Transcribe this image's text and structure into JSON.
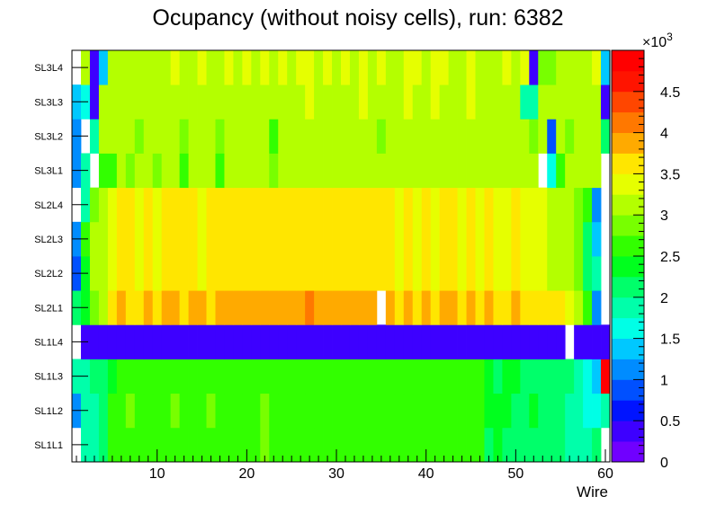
{
  "chart_data": {
    "type": "heatmap",
    "title": "Ocupancy (without noisy cells), run: 6382",
    "xlabel": "Wire",
    "ylabel": "",
    "xlim": [
      0.5,
      60.5
    ],
    "x_ticks": [
      10,
      20,
      30,
      40,
      50,
      60
    ],
    "y_categories": [
      "SL1L1",
      "SL1L2",
      "SL1L3",
      "SL1L4",
      "SL2L1",
      "SL2L2",
      "SL2L3",
      "SL2L4",
      "SL3L1",
      "SL3L2",
      "SL3L3",
      "SL3L4"
    ],
    "z_range": [
      0,
      5000
    ],
    "z_multiplier_label": "×10",
    "z_multiplier_exponent": "3",
    "colorbar_ticks": [
      "0",
      "0.5",
      "1",
      "1.5",
      "2",
      "2.5",
      "3",
      "3.5",
      "4",
      "4.5"
    ],
    "rows": {
      "SL1L1": [
        0,
        1800,
        1900,
        2100,
        2500,
        2600,
        2700,
        2700,
        2600,
        2600,
        2700,
        2600,
        2600,
        2600,
        2700,
        2700,
        2600,
        2700,
        2700,
        2600,
        2600,
        2800,
        2600,
        2700,
        2600,
        2700,
        2700,
        2600,
        2600,
        2600,
        2700,
        2600,
        2700,
        2600,
        2700,
        2600,
        2700,
        2600,
        2700,
        2600,
        2700,
        2600,
        2700,
        2600,
        2600,
        2700,
        2200,
        2300,
        2200,
        2200,
        2100,
        2200,
        2100,
        2200,
        2200,
        1900,
        1800,
        1800,
        2000,
        0
      ],
      "SL1L2": [
        1200,
        1800,
        1900,
        2100,
        2500,
        2700,
        2800,
        2700,
        2600,
        2600,
        2700,
        2800,
        2600,
        2600,
        2700,
        2800,
        2600,
        2700,
        2700,
        2600,
        2600,
        2800,
        2600,
        2700,
        2600,
        2700,
        2700,
        2600,
        2600,
        2600,
        2700,
        2600,
        2700,
        2600,
        2700,
        2600,
        2700,
        2600,
        2700,
        2600,
        2700,
        2600,
        2700,
        2600,
        2600,
        2700,
        2300,
        2400,
        2300,
        2200,
        2200,
        2300,
        2100,
        2200,
        2200,
        1900,
        1800,
        1700,
        1500,
        1800
      ],
      "SL1L3": [
        1800,
        1900,
        2000,
        2100,
        2300,
        2600,
        2700,
        2600,
        2600,
        2500,
        2600,
        2600,
        2600,
        2500,
        2600,
        2700,
        2500,
        2600,
        2600,
        2500,
        2500,
        2700,
        2500,
        2600,
        2500,
        2600,
        2600,
        2500,
        2500,
        2500,
        2600,
        2500,
        2600,
        2500,
        2600,
        2500,
        2600,
        2500,
        2600,
        2500,
        2600,
        2500,
        2600,
        2500,
        2500,
        2600,
        2400,
        2200,
        2300,
        2300,
        2200,
        2100,
        2200,
        2200,
        2100,
        2000,
        1900,
        1500,
        1300,
        4900
      ],
      "SL1L4": [
        0,
        400,
        400,
        400,
        400,
        400,
        400,
        400,
        400,
        400,
        400,
        400,
        400,
        400,
        400,
        400,
        400,
        400,
        400,
        400,
        400,
        400,
        400,
        400,
        400,
        400,
        400,
        400,
        400,
        400,
        400,
        400,
        400,
        400,
        400,
        400,
        400,
        400,
        400,
        400,
        400,
        400,
        400,
        400,
        400,
        400,
        400,
        400,
        400,
        400,
        400,
        400,
        400,
        400,
        400,
        0,
        400,
        400,
        400,
        400
      ],
      "SL2L1": [
        2200,
        2400,
        2900,
        3100,
        3700,
        3800,
        3700,
        3700,
        3800,
        3700,
        3800,
        3800,
        3700,
        3800,
        3800,
        3700,
        3900,
        3800,
        3900,
        3800,
        3900,
        3900,
        3800,
        3900,
        3800,
        3900,
        4200,
        3800,
        3900,
        3800,
        3900,
        3800,
        3900,
        3800,
        0,
        3800,
        3700,
        3800,
        3700,
        3800,
        3700,
        3800,
        3800,
        3700,
        3800,
        3700,
        3800,
        3700,
        3700,
        3800,
        3600,
        3700,
        3600,
        3700,
        3500,
        3300,
        3100,
        2700,
        1000,
        0
      ],
      "SL2L2": [
        800,
        2400,
        3000,
        3200,
        3400,
        3500,
        3500,
        3400,
        3500,
        3400,
        3500,
        3600,
        3500,
        3500,
        3400,
        3500,
        3600,
        3500,
        3600,
        3500,
        3600,
        3600,
        3500,
        3600,
        3500,
        3600,
        3600,
        3500,
        3600,
        3500,
        3600,
        3500,
        3600,
        3500,
        3600,
        3500,
        3400,
        3500,
        3400,
        3500,
        3400,
        3500,
        3500,
        3400,
        3500,
        3400,
        3500,
        3400,
        3400,
        3500,
        3300,
        3400,
        3300,
        3200,
        3100,
        3000,
        2800,
        2100,
        1900,
        0
      ],
      "SL2L3": [
        1200,
        2500,
        3000,
        3200,
        3400,
        3500,
        3500,
        3400,
        3500,
        3400,
        3500,
        3600,
        3500,
        3500,
        3400,
        3500,
        3600,
        3500,
        3600,
        3500,
        3600,
        3600,
        3500,
        3600,
        3500,
        3600,
        3600,
        3500,
        3600,
        3500,
        3600,
        3500,
        3600,
        3500,
        3600,
        3500,
        3400,
        3500,
        3400,
        3500,
        3400,
        3500,
        3500,
        3400,
        3500,
        3400,
        3500,
        3400,
        3400,
        3500,
        3300,
        3400,
        3300,
        3200,
        3100,
        3000,
        2800,
        2100,
        1300,
        0
      ],
      "SL2L4": [
        0,
        1900,
        2900,
        3200,
        3400,
        3500,
        3500,
        3400,
        3500,
        3400,
        3500,
        3600,
        3500,
        3500,
        3400,
        3500,
        3600,
        3500,
        3600,
        3500,
        3600,
        3600,
        3500,
        3600,
        3500,
        3600,
        3600,
        3500,
        3600,
        3500,
        3600,
        3500,
        3600,
        3500,
        3600,
        3500,
        3400,
        3500,
        3400,
        3500,
        3400,
        3500,
        3500,
        3400,
        3500,
        3400,
        3500,
        3400,
        3400,
        3500,
        3300,
        3400,
        3300,
        3200,
        3100,
        3000,
        2800,
        2600,
        1000,
        0
      ],
      "SL3L1": [
        1100,
        1800,
        0,
        2700,
        2700,
        3000,
        2900,
        3000,
        3100,
        2900,
        3000,
        3100,
        2700,
        3100,
        3000,
        3100,
        2700,
        3000,
        3100,
        3000,
        3000,
        3100,
        2900,
        3000,
        3200,
        3100,
        3000,
        3100,
        3000,
        3000,
        3200,
        3000,
        3100,
        3000,
        3100,
        3000,
        3200,
        3000,
        3100,
        3000,
        3200,
        3000,
        3100,
        3000,
        3200,
        3000,
        3100,
        3000,
        3100,
        3000,
        3200,
        3000,
        0,
        1500,
        2700,
        3000,
        3000,
        3100,
        3200,
        0
      ],
      "SL3L2": [
        1200,
        0,
        1800,
        3000,
        3100,
        3000,
        3100,
        2900,
        3100,
        3000,
        3100,
        3100,
        2900,
        3000,
        3100,
        3000,
        2900,
        3100,
        3000,
        3100,
        3000,
        3100,
        2700,
        3100,
        3000,
        3100,
        3200,
        3000,
        3100,
        3000,
        3100,
        3000,
        3200,
        3100,
        2800,
        3100,
        3000,
        3200,
        3100,
        3000,
        3200,
        3000,
        3100,
        3000,
        3200,
        3000,
        3100,
        3000,
        3100,
        3000,
        3200,
        2900,
        3000,
        900,
        3000,
        2800,
        3100,
        3000,
        3000,
        2000
      ],
      "SL3L3": [
        1300,
        1700,
        400,
        3000,
        3100,
        3100,
        3100,
        3100,
        3100,
        3100,
        3100,
        3200,
        3100,
        3100,
        3200,
        3100,
        3100,
        3200,
        3100,
        3200,
        3100,
        3200,
        3000,
        3200,
        3100,
        3200,
        3300,
        3100,
        3200,
        3100,
        3200,
        3100,
        3300,
        3200,
        3000,
        3200,
        3100,
        3300,
        3200,
        3100,
        3300,
        3100,
        3200,
        3100,
        3300,
        3100,
        3200,
        3100,
        3200,
        3100,
        1800,
        1800,
        3000,
        3000,
        3100,
        3200,
        3100,
        3100,
        3200,
        400
      ],
      "SL3L4": [
        0,
        3000,
        400,
        1300,
        3000,
        3100,
        3100,
        3000,
        3200,
        3100,
        3200,
        3300,
        3100,
        3100,
        3300,
        3200,
        3000,
        3400,
        3100,
        3300,
        3000,
        3300,
        3100,
        3300,
        3000,
        3300,
        3400,
        3100,
        3300,
        3100,
        3400,
        3100,
        3300,
        3100,
        3400,
        3200,
        3100,
        3400,
        3300,
        3100,
        3400,
        3300,
        3200,
        3100,
        3300,
        3100,
        3200,
        3100,
        3300,
        3100,
        3300,
        400,
        2800,
        2900,
        3100,
        3200,
        3100,
        3100,
        3300,
        1300
      ]
    }
  }
}
